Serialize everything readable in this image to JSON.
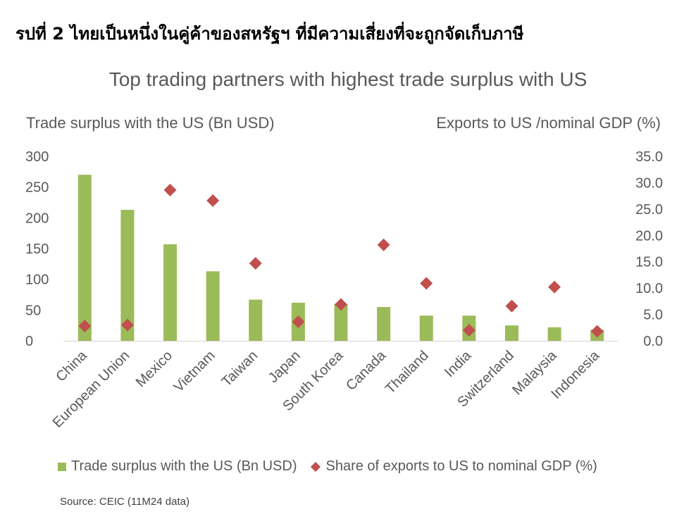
{
  "heading": "รปที่ 2 ไทยเป็นหนึ่งในคู่ค้าของสหรัฐฯ ที่มีความเสี่ยงที่จะถูกจัดเก็บภาษี",
  "source": "Source: CEIC (11M24 data)",
  "colors": {
    "bar": "#9bbb59",
    "marker": "#c0504d",
    "axis": "#d9d9d9",
    "text": "#595959"
  },
  "chart_data": {
    "type": "bar",
    "title": "Top trading partners with highest trade surplus with US",
    "ylabel": "Trade surplus with the US (Bn USD)",
    "y2label": "Exports to US /nominal GDP (%)",
    "categories": [
      "China",
      "European Union",
      "Mexico",
      "Vietnam",
      "Taiwan",
      "Japan",
      "South Korea",
      "Canada",
      "Thailand",
      "India",
      "Switzerland",
      "Malaysia",
      "Indonesia"
    ],
    "ylim": [
      0,
      300
    ],
    "yticks": [
      "0",
      "50",
      "100",
      "150",
      "200",
      "250",
      "300"
    ],
    "y2lim": [
      0,
      35
    ],
    "y2ticks": [
      "0.0",
      "5.0",
      "10.0",
      "15.0",
      "20.0",
      "25.0",
      "30.0",
      "35.0"
    ],
    "grid": false,
    "legend_position": "bottom",
    "series": [
      {
        "name": "Trade surplus with the US (Bn USD)",
        "type": "bar",
        "axis": "left",
        "values": [
          270,
          213,
          157,
          113,
          67,
          62,
          60,
          55,
          41,
          41,
          25,
          22,
          18
        ]
      },
      {
        "name": "Share of exports to US to nominal GDP (%)",
        "type": "scatter",
        "axis": "right",
        "marker": "diamond",
        "values": [
          2.8,
          3.0,
          28.6,
          26.6,
          14.7,
          3.6,
          6.9,
          18.2,
          10.9,
          2.0,
          6.6,
          10.2,
          1.8
        ]
      }
    ]
  }
}
